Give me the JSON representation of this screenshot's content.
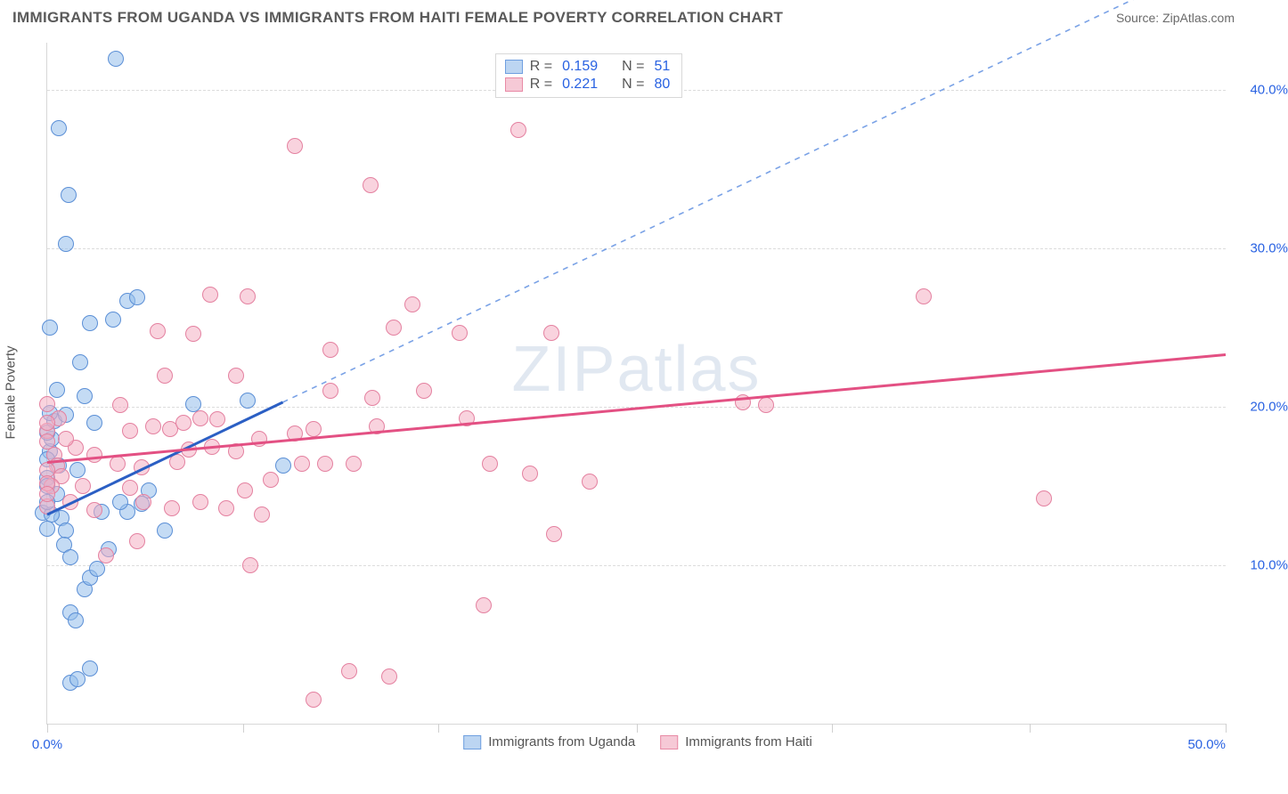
{
  "header": {
    "title": "IMMIGRANTS FROM UGANDA VS IMMIGRANTS FROM HAITI FEMALE POVERTY CORRELATION CHART",
    "source": "Source: ZipAtlas.com"
  },
  "chart": {
    "type": "scatter",
    "ylabel": "Female Poverty",
    "watermark": "ZIPatlas",
    "background_color": "#ffffff",
    "grid_color": "#dcdcdc",
    "axis_color": "#d8d8d8",
    "tick_label_color": "#2962e2",
    "text_color": "#555555",
    "xlim": [
      0,
      50
    ],
    "ylim": [
      0,
      43
    ],
    "xticks": [
      0,
      8.3,
      16.6,
      25,
      33.3,
      41.7,
      50
    ],
    "xtick_labels": {
      "0": "0.0%",
      "50": "50.0%"
    },
    "yticks": [
      10,
      20,
      30,
      40
    ],
    "ytick_labels": {
      "10": "10.0%",
      "20": "20.0%",
      "30": "30.0%",
      "40": "40.0%"
    },
    "legend_top": [
      {
        "swatch_fill": "#bcd5f2",
        "swatch_border": "#6f9fe0",
        "r_label": "R =",
        "r_value": "0.159",
        "n_label": "N =",
        "n_value": "51"
      },
      {
        "swatch_fill": "#f6c9d6",
        "swatch_border": "#e88aa5",
        "r_label": "R =",
        "r_value": "0.221",
        "n_label": "N =",
        "n_value": "80"
      }
    ],
    "legend_bottom": [
      {
        "swatch_fill": "#bcd5f2",
        "swatch_border": "#6f9fe0",
        "label": "Immigrants from Uganda"
      },
      {
        "swatch_fill": "#f6c9d6",
        "swatch_border": "#e88aa5",
        "label": "Immigrants from Haiti"
      }
    ],
    "series": [
      {
        "name": "uganda",
        "point_fill": "rgba(148,190,235,0.55)",
        "point_border": "#5b8fd6",
        "point_radius": 9,
        "regression": {
          "x1": 0,
          "y1": 13.2,
          "x2": 10,
          "y2": 20.3,
          "solid_color": "#2b5fc4",
          "dash_color": "#7aa2e6",
          "extend_to_x": 50,
          "extend_to_y": 48.5
        },
        "data": [
          [
            2.9,
            42.0
          ],
          [
            0.5,
            37.6
          ],
          [
            0.9,
            33.4
          ],
          [
            0.8,
            30.3
          ],
          [
            -0.2,
            13.3
          ],
          [
            0.0,
            15.5
          ],
          [
            0.1,
            17.2
          ],
          [
            0.3,
            19.1
          ],
          [
            0.2,
            18.0
          ],
          [
            0.5,
            16.3
          ],
          [
            0.4,
            14.5
          ],
          [
            0.6,
            13.0
          ],
          [
            0.8,
            12.2
          ],
          [
            0.7,
            11.3
          ],
          [
            1.0,
            10.5
          ],
          [
            1.8,
            25.3
          ],
          [
            2.8,
            25.5
          ],
          [
            3.4,
            26.7
          ],
          [
            3.8,
            26.9
          ],
          [
            1.4,
            22.8
          ],
          [
            1.6,
            20.7
          ],
          [
            2.0,
            19.0
          ],
          [
            2.3,
            13.4
          ],
          [
            3.4,
            13.4
          ],
          [
            4.0,
            13.9
          ],
          [
            4.3,
            14.7
          ],
          [
            3.1,
            14.0
          ],
          [
            1.0,
            7.0
          ],
          [
            1.2,
            6.5
          ],
          [
            1.6,
            8.5
          ],
          [
            1.8,
            9.2
          ],
          [
            2.1,
            9.8
          ],
          [
            2.6,
            11.0
          ],
          [
            1.0,
            2.6
          ],
          [
            1.3,
            2.8
          ],
          [
            1.8,
            3.5
          ],
          [
            6.2,
            20.2
          ],
          [
            8.5,
            20.4
          ],
          [
            5.0,
            12.2
          ],
          [
            10.0,
            16.3
          ],
          [
            0.1,
            25.0
          ],
          [
            0.2,
            13.2
          ],
          [
            0.0,
            18.4
          ],
          [
            0.0,
            16.7
          ],
          [
            1.3,
            16.0
          ],
          [
            0.4,
            21.1
          ],
          [
            0.1,
            19.6
          ],
          [
            0.0,
            12.3
          ],
          [
            0.0,
            14.0
          ],
          [
            0.0,
            15.0
          ],
          [
            0.8,
            19.5
          ]
        ]
      },
      {
        "name": "haiti",
        "point_fill": "rgba(244,175,195,0.55)",
        "point_border": "#e481a0",
        "point_radius": 9,
        "regression": {
          "x1": 0,
          "y1": 16.5,
          "x2": 50,
          "y2": 23.3,
          "solid_color": "#e35083"
        },
        "data": [
          [
            20.0,
            37.5
          ],
          [
            10.5,
            36.5
          ],
          [
            13.7,
            34.0
          ],
          [
            6.9,
            27.1
          ],
          [
            4.7,
            24.8
          ],
          [
            8.5,
            27.0
          ],
          [
            15.5,
            26.5
          ],
          [
            12.0,
            23.6
          ],
          [
            14.7,
            25.0
          ],
          [
            17.5,
            24.7
          ],
          [
            21.4,
            24.7
          ],
          [
            37.2,
            27.0
          ],
          [
            6.2,
            24.6
          ],
          [
            3.1,
            20.1
          ],
          [
            3.5,
            18.5
          ],
          [
            4.5,
            18.8
          ],
          [
            5.2,
            18.6
          ],
          [
            5.8,
            19.0
          ],
          [
            6.5,
            19.3
          ],
          [
            7.2,
            19.2
          ],
          [
            6.0,
            17.3
          ],
          [
            7.0,
            17.5
          ],
          [
            8.0,
            17.2
          ],
          [
            9.0,
            18.0
          ],
          [
            10.5,
            18.3
          ],
          [
            11.3,
            18.6
          ],
          [
            14.0,
            18.8
          ],
          [
            12.0,
            21.0
          ],
          [
            16.0,
            21.0
          ],
          [
            17.8,
            19.3
          ],
          [
            18.8,
            16.4
          ],
          [
            10.8,
            16.4
          ],
          [
            11.8,
            16.4
          ],
          [
            13.0,
            16.4
          ],
          [
            9.5,
            15.4
          ],
          [
            8.4,
            14.7
          ],
          [
            7.6,
            13.6
          ],
          [
            6.5,
            14.0
          ],
          [
            5.3,
            13.6
          ],
          [
            4.1,
            14.0
          ],
          [
            3.0,
            16.4
          ],
          [
            2.0,
            17.0
          ],
          [
            1.2,
            17.4
          ],
          [
            0.8,
            18.0
          ],
          [
            0.3,
            17.0
          ],
          [
            0.4,
            16.3
          ],
          [
            0.6,
            15.6
          ],
          [
            0.2,
            15.0
          ],
          [
            21.5,
            12.0
          ],
          [
            20.5,
            15.8
          ],
          [
            23.0,
            15.3
          ],
          [
            29.5,
            20.3
          ],
          [
            30.5,
            20.1
          ],
          [
            42.3,
            14.2
          ],
          [
            18.5,
            7.5
          ],
          [
            12.8,
            3.3
          ],
          [
            14.5,
            3.0
          ],
          [
            11.3,
            1.5
          ],
          [
            8.6,
            10.0
          ],
          [
            9.1,
            13.2
          ],
          [
            4.0,
            16.2
          ],
          [
            2.0,
            13.5
          ],
          [
            1.5,
            15.0
          ],
          [
            1.0,
            14.0
          ],
          [
            0.0,
            13.7
          ],
          [
            0.0,
            16.0
          ],
          [
            0.0,
            18.5
          ],
          [
            0.5,
            19.3
          ],
          [
            0.0,
            15.2
          ],
          [
            0.0,
            14.5
          ],
          [
            13.8,
            20.6
          ],
          [
            8.0,
            22.0
          ],
          [
            5.0,
            22.0
          ],
          [
            5.5,
            16.5
          ],
          [
            3.8,
            11.5
          ],
          [
            2.5,
            10.6
          ],
          [
            0.0,
            17.8
          ],
          [
            0.0,
            19.0
          ],
          [
            0.0,
            20.2
          ],
          [
            3.5,
            14.9
          ]
        ]
      }
    ]
  }
}
